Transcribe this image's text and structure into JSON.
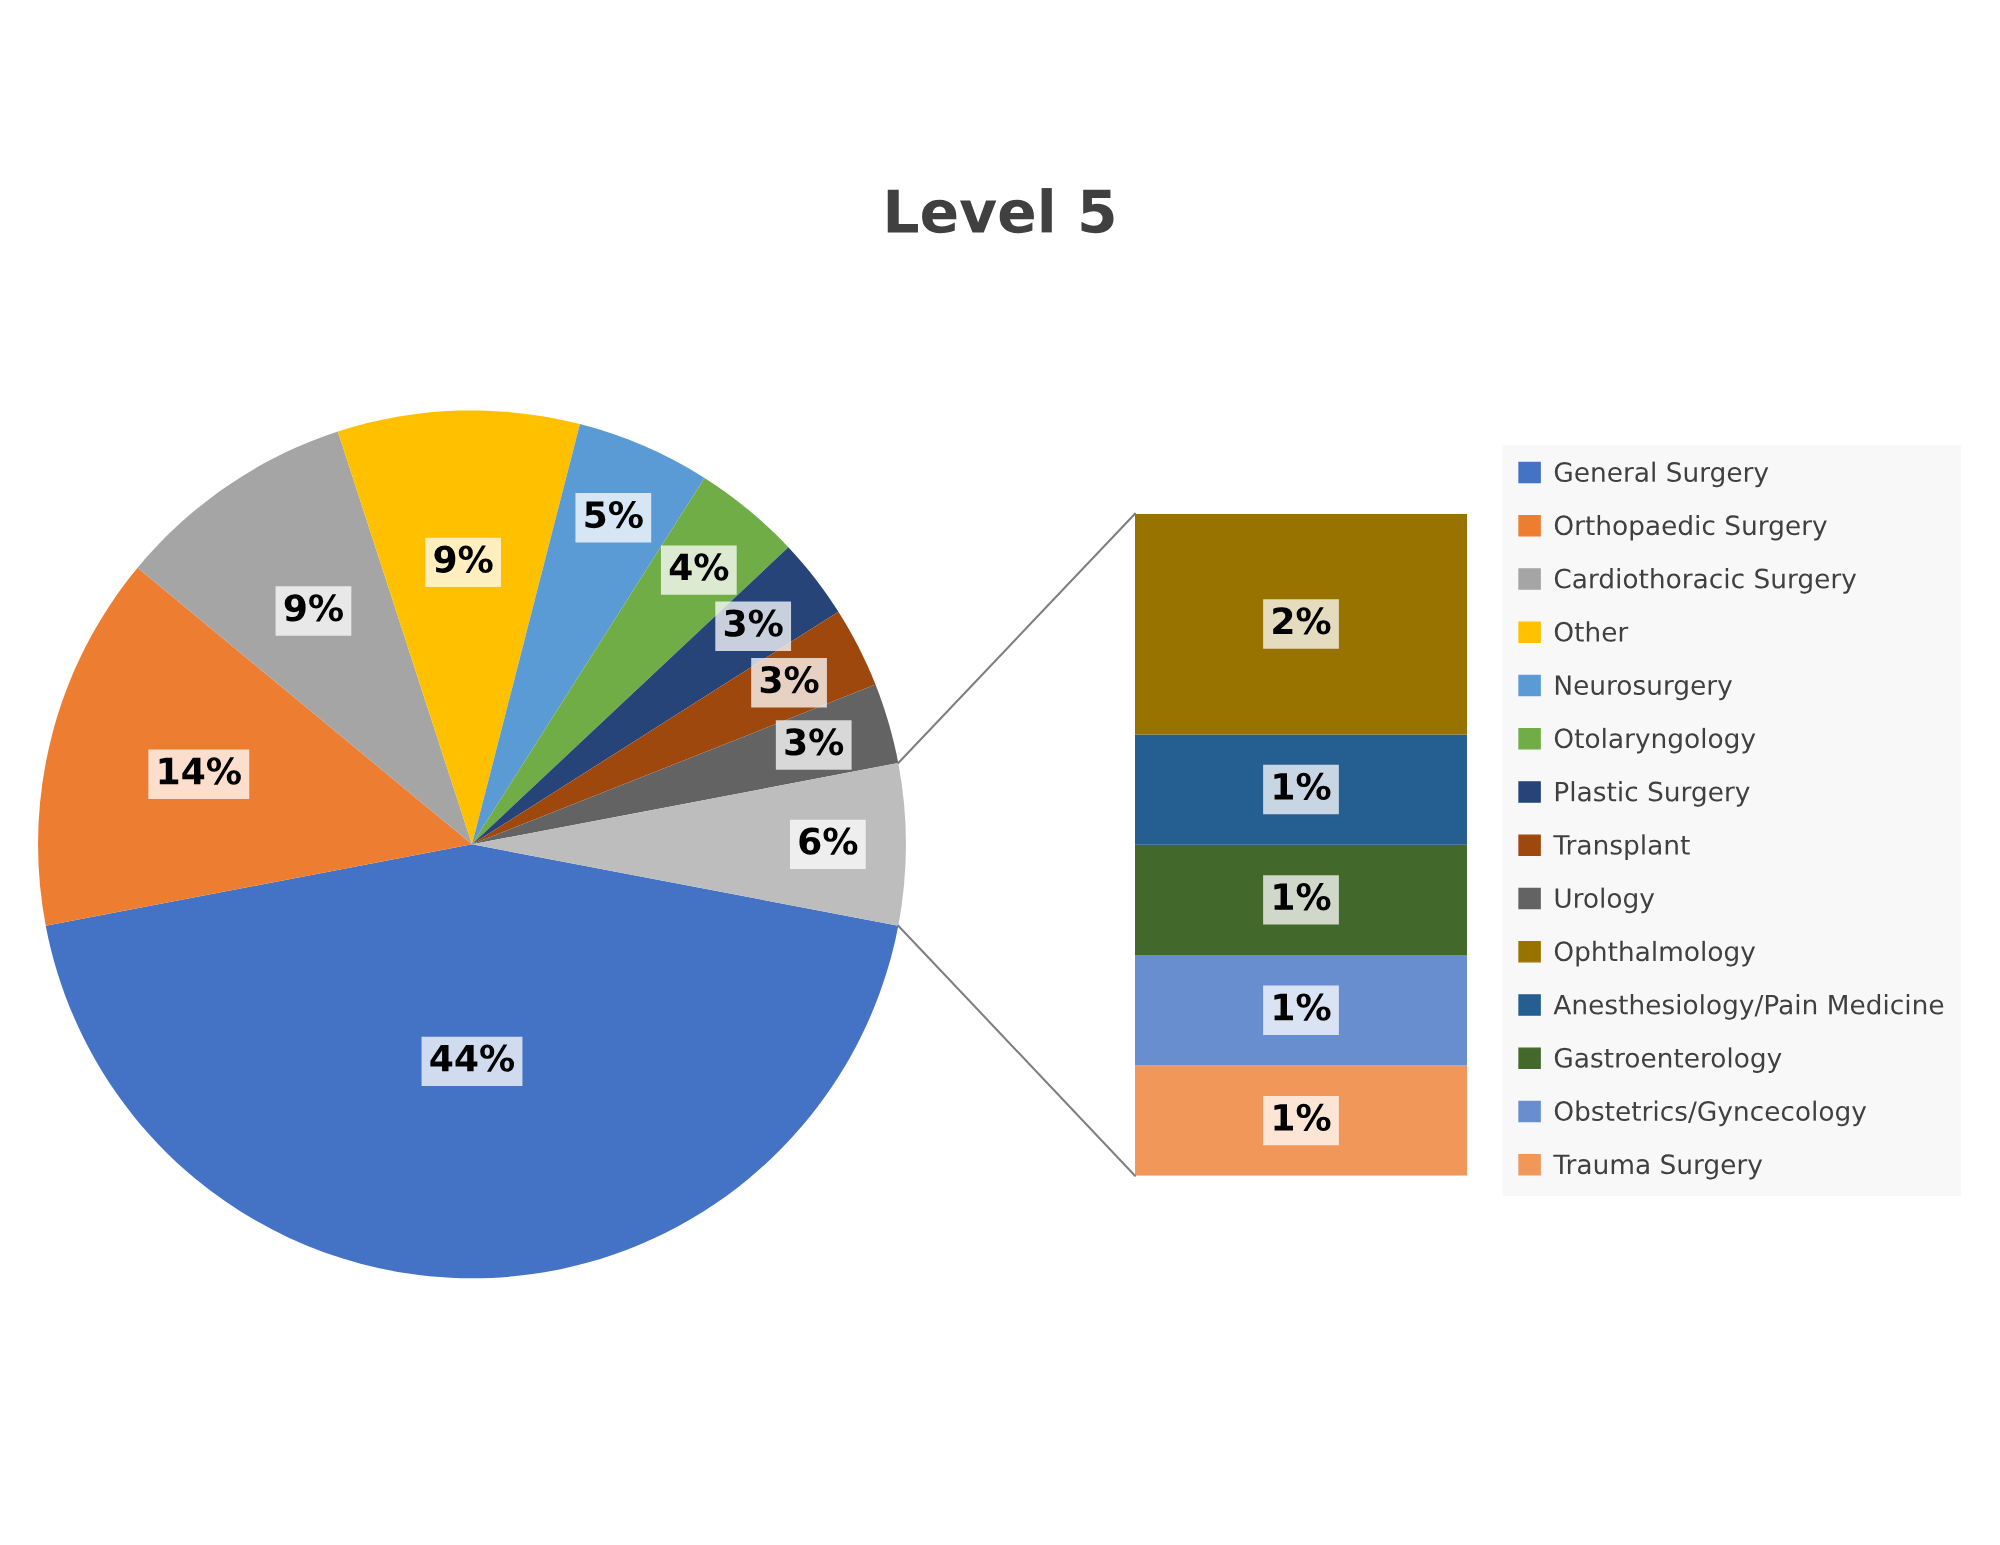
{
  "chart_data": [
    {
      "type": "pie",
      "title": "Level 5",
      "categories": [
        "General Surgery",
        "Orthopaedic Surgery",
        "Cardiothoracic Surgery",
        "Other",
        "Neurosurgery",
        "Otolaryngology",
        "Plastic Surgery",
        "Transplant",
        "Urology",
        null
      ],
      "values": [
        44,
        14,
        9,
        9,
        5,
        4,
        3,
        3,
        3,
        6
      ],
      "value_labels": [
        "44%",
        "14%",
        "9%",
        "9%",
        "5%",
        "4%",
        "3%",
        "3%",
        "3%",
        "6%"
      ],
      "colors": [
        "#4472c4",
        "#ed7d31",
        "#a5a5a5",
        "#ffc000",
        "#5b9bd5",
        "#70ad47",
        "#264478",
        "#9e480e",
        "#636363",
        "#bdbdbd"
      ],
      "legend": "right"
    },
    {
      "type": "bar",
      "stacked": true,
      "categories": [
        null
      ],
      "series": [
        {
          "name": "Trauma Surgery",
          "color": "#f1975a",
          "values": [
            1
          ],
          "value_labels": [
            "1%"
          ]
        },
        {
          "name": "Obstetrics/Gyncecology",
          "color": "#698ed0",
          "values": [
            1
          ],
          "value_labels": [
            "1%"
          ]
        },
        {
          "name": "Gastroenterology",
          "color": "#43682b",
          "values": [
            1
          ],
          "value_labels": [
            "1%"
          ]
        },
        {
          "name": "Anesthesiology/Pain Medicine",
          "color": "#255e91",
          "values": [
            1
          ],
          "value_labels": [
            "1%"
          ]
        },
        {
          "name": "Ophthalmology",
          "color": "#997300",
          "values": [
            2
          ],
          "value_labels": [
            "2%"
          ]
        }
      ],
      "legend": "right"
    }
  ]
}
